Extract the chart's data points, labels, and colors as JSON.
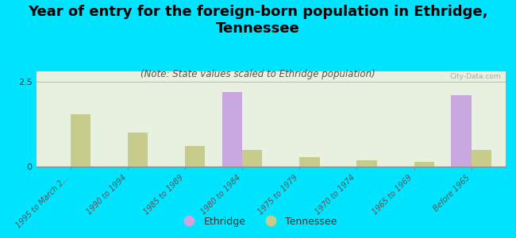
{
  "title": "Year of entry for the foreign-born population in Ethridge,\nTennessee",
  "subtitle": "(Note: State values scaled to Ethridge population)",
  "categories": [
    "1995 to March 2...",
    "1990 to 1994",
    "1985 to 1989",
    "1980 to 1984",
    "1975 to 1979",
    "1970 to 1974",
    "1965 to 1969",
    "Before 1965"
  ],
  "ethridge_values": [
    0,
    0,
    0,
    2.2,
    0,
    0,
    0,
    2.1
  ],
  "tennessee_values": [
    1.55,
    1.0,
    0.6,
    0.5,
    0.28,
    0.18,
    0.13,
    0.5
  ],
  "ethridge_color": "#c9a8e0",
  "tennessee_color": "#c8cc8a",
  "background_color": "#00e5ff",
  "plot_bg": "#e8f0e0",
  "ylim": [
    0,
    2.8
  ],
  "yticks": [
    0,
    2.5
  ],
  "bar_width": 0.35,
  "watermark": "City-Data.com",
  "legend_ethridge": "Ethridge",
  "legend_tennessee": "Tennessee",
  "title_fontsize": 13,
  "subtitle_fontsize": 8.5
}
